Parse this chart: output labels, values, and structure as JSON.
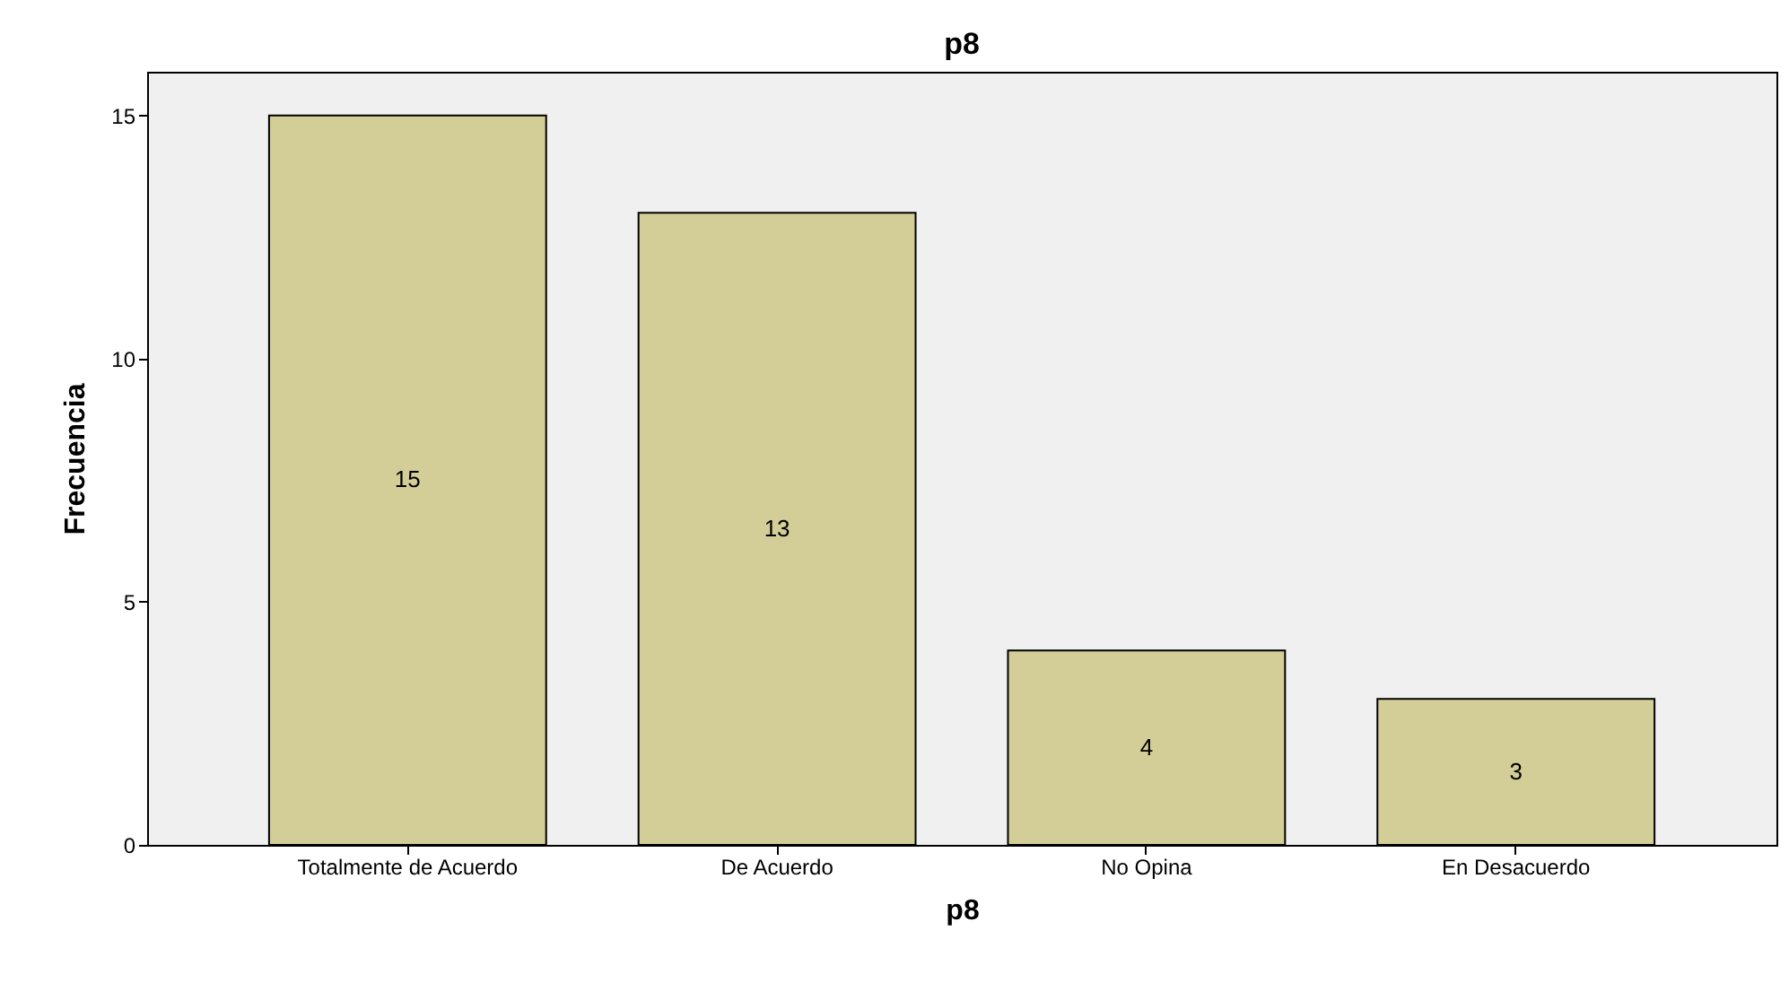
{
  "chart_data": {
    "type": "bar",
    "title": "p8",
    "xlabel": "p8",
    "ylabel": "Frecuencia",
    "categories": [
      "Totalmente de Acuerdo",
      "De Acuerdo",
      "No Opina",
      "En Desacuerdo"
    ],
    "values": [
      15,
      13,
      4,
      3
    ],
    "color": "#d3ce97",
    "ylim": [
      0,
      15.9
    ],
    "yticks": [
      0,
      5,
      10,
      15
    ],
    "grid": false,
    "data_labels": true
  }
}
